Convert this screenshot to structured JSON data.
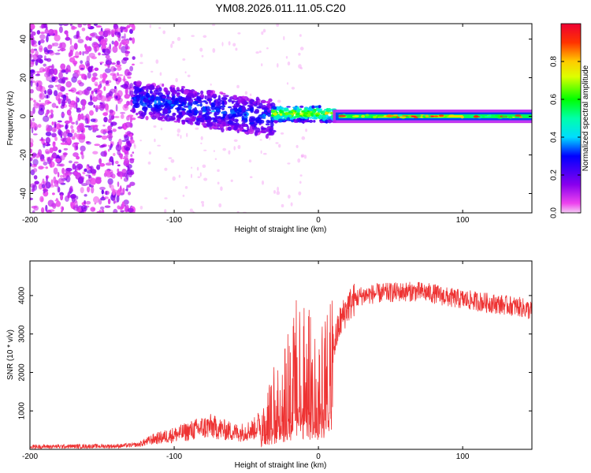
{
  "title": "YM08.2026.011.11.05.C20",
  "chart_data": [
    {
      "type": "heatmap",
      "title": "YM08.2026.011.11.05.C20",
      "xlabel": "Height of straight line (km)",
      "ylabel": "Frequency (Hz)",
      "xlim": [
        -200,
        148
      ],
      "ylim": [
        -50,
        48
      ],
      "xticks": [
        -200,
        -100,
        0,
        100
      ],
      "yticks": [
        -40,
        -20,
        0,
        20,
        40
      ],
      "colorbar": {
        "label": "Normalized spectral amplitude",
        "range": [
          0.0,
          1.0
        ],
        "ticks": [
          0.0,
          0.2,
          0.4,
          0.6,
          0.8
        ],
        "colormap": "rainbow (magenta-blue-cyan-green-yellow-red)"
      },
      "regions": [
        {
          "name": "scattered noise",
          "x": [
            -200,
            -128
          ],
          "freq": [
            -50,
            48
          ],
          "amplitude": 0.1
        },
        {
          "name": "signal onset",
          "x": [
            -128,
            -30
          ],
          "freq_center_start": 9,
          "freq_center_end": -8,
          "band_halfwidth": 8,
          "amplitude": 0.25
        },
        {
          "name": "converging",
          "x": [
            -30,
            10
          ],
          "freq_center": 2,
          "band_halfwidth": 4,
          "amplitude": 0.55
        },
        {
          "name": "stable band",
          "x": [
            10,
            148
          ],
          "freq_center": 0,
          "band_halfwidth": 3,
          "peak_x": 70,
          "peak_amplitude": 1.0
        }
      ]
    },
    {
      "type": "line",
      "xlabel": "Height of straight line (km)",
      "ylabel": "SNR (10 * v/v)",
      "xlim": [
        -200,
        148
      ],
      "ylim": [
        0,
        4900
      ],
      "xticks": [
        -200,
        -100,
        0,
        100
      ],
      "yticks": [
        1000,
        2000,
        3000,
        4000
      ],
      "series": [
        {
          "name": "SNR",
          "color": "#ee3333",
          "x": [
            -200,
            -180,
            -160,
            -140,
            -125,
            -115,
            -105,
            -95,
            -85,
            -75,
            -65,
            -55,
            -45,
            -40,
            -35,
            -30,
            -25,
            -20,
            -15,
            -10,
            -5,
            0,
            5,
            10,
            15,
            20,
            25,
            30,
            40,
            50,
            60,
            70,
            80,
            90,
            100,
            110,
            120,
            130,
            140,
            148
          ],
          "y": [
            70,
            75,
            80,
            85,
            120,
            260,
            340,
            420,
            520,
            600,
            500,
            430,
            520,
            700,
            900,
            1300,
            1700,
            2000,
            2300,
            2300,
            2000,
            1800,
            2000,
            2600,
            3300,
            3700,
            3900,
            4000,
            4050,
            4080,
            4100,
            4100,
            4050,
            3950,
            3900,
            3850,
            3800,
            3750,
            3700,
            3600
          ]
        }
      ]
    }
  ]
}
